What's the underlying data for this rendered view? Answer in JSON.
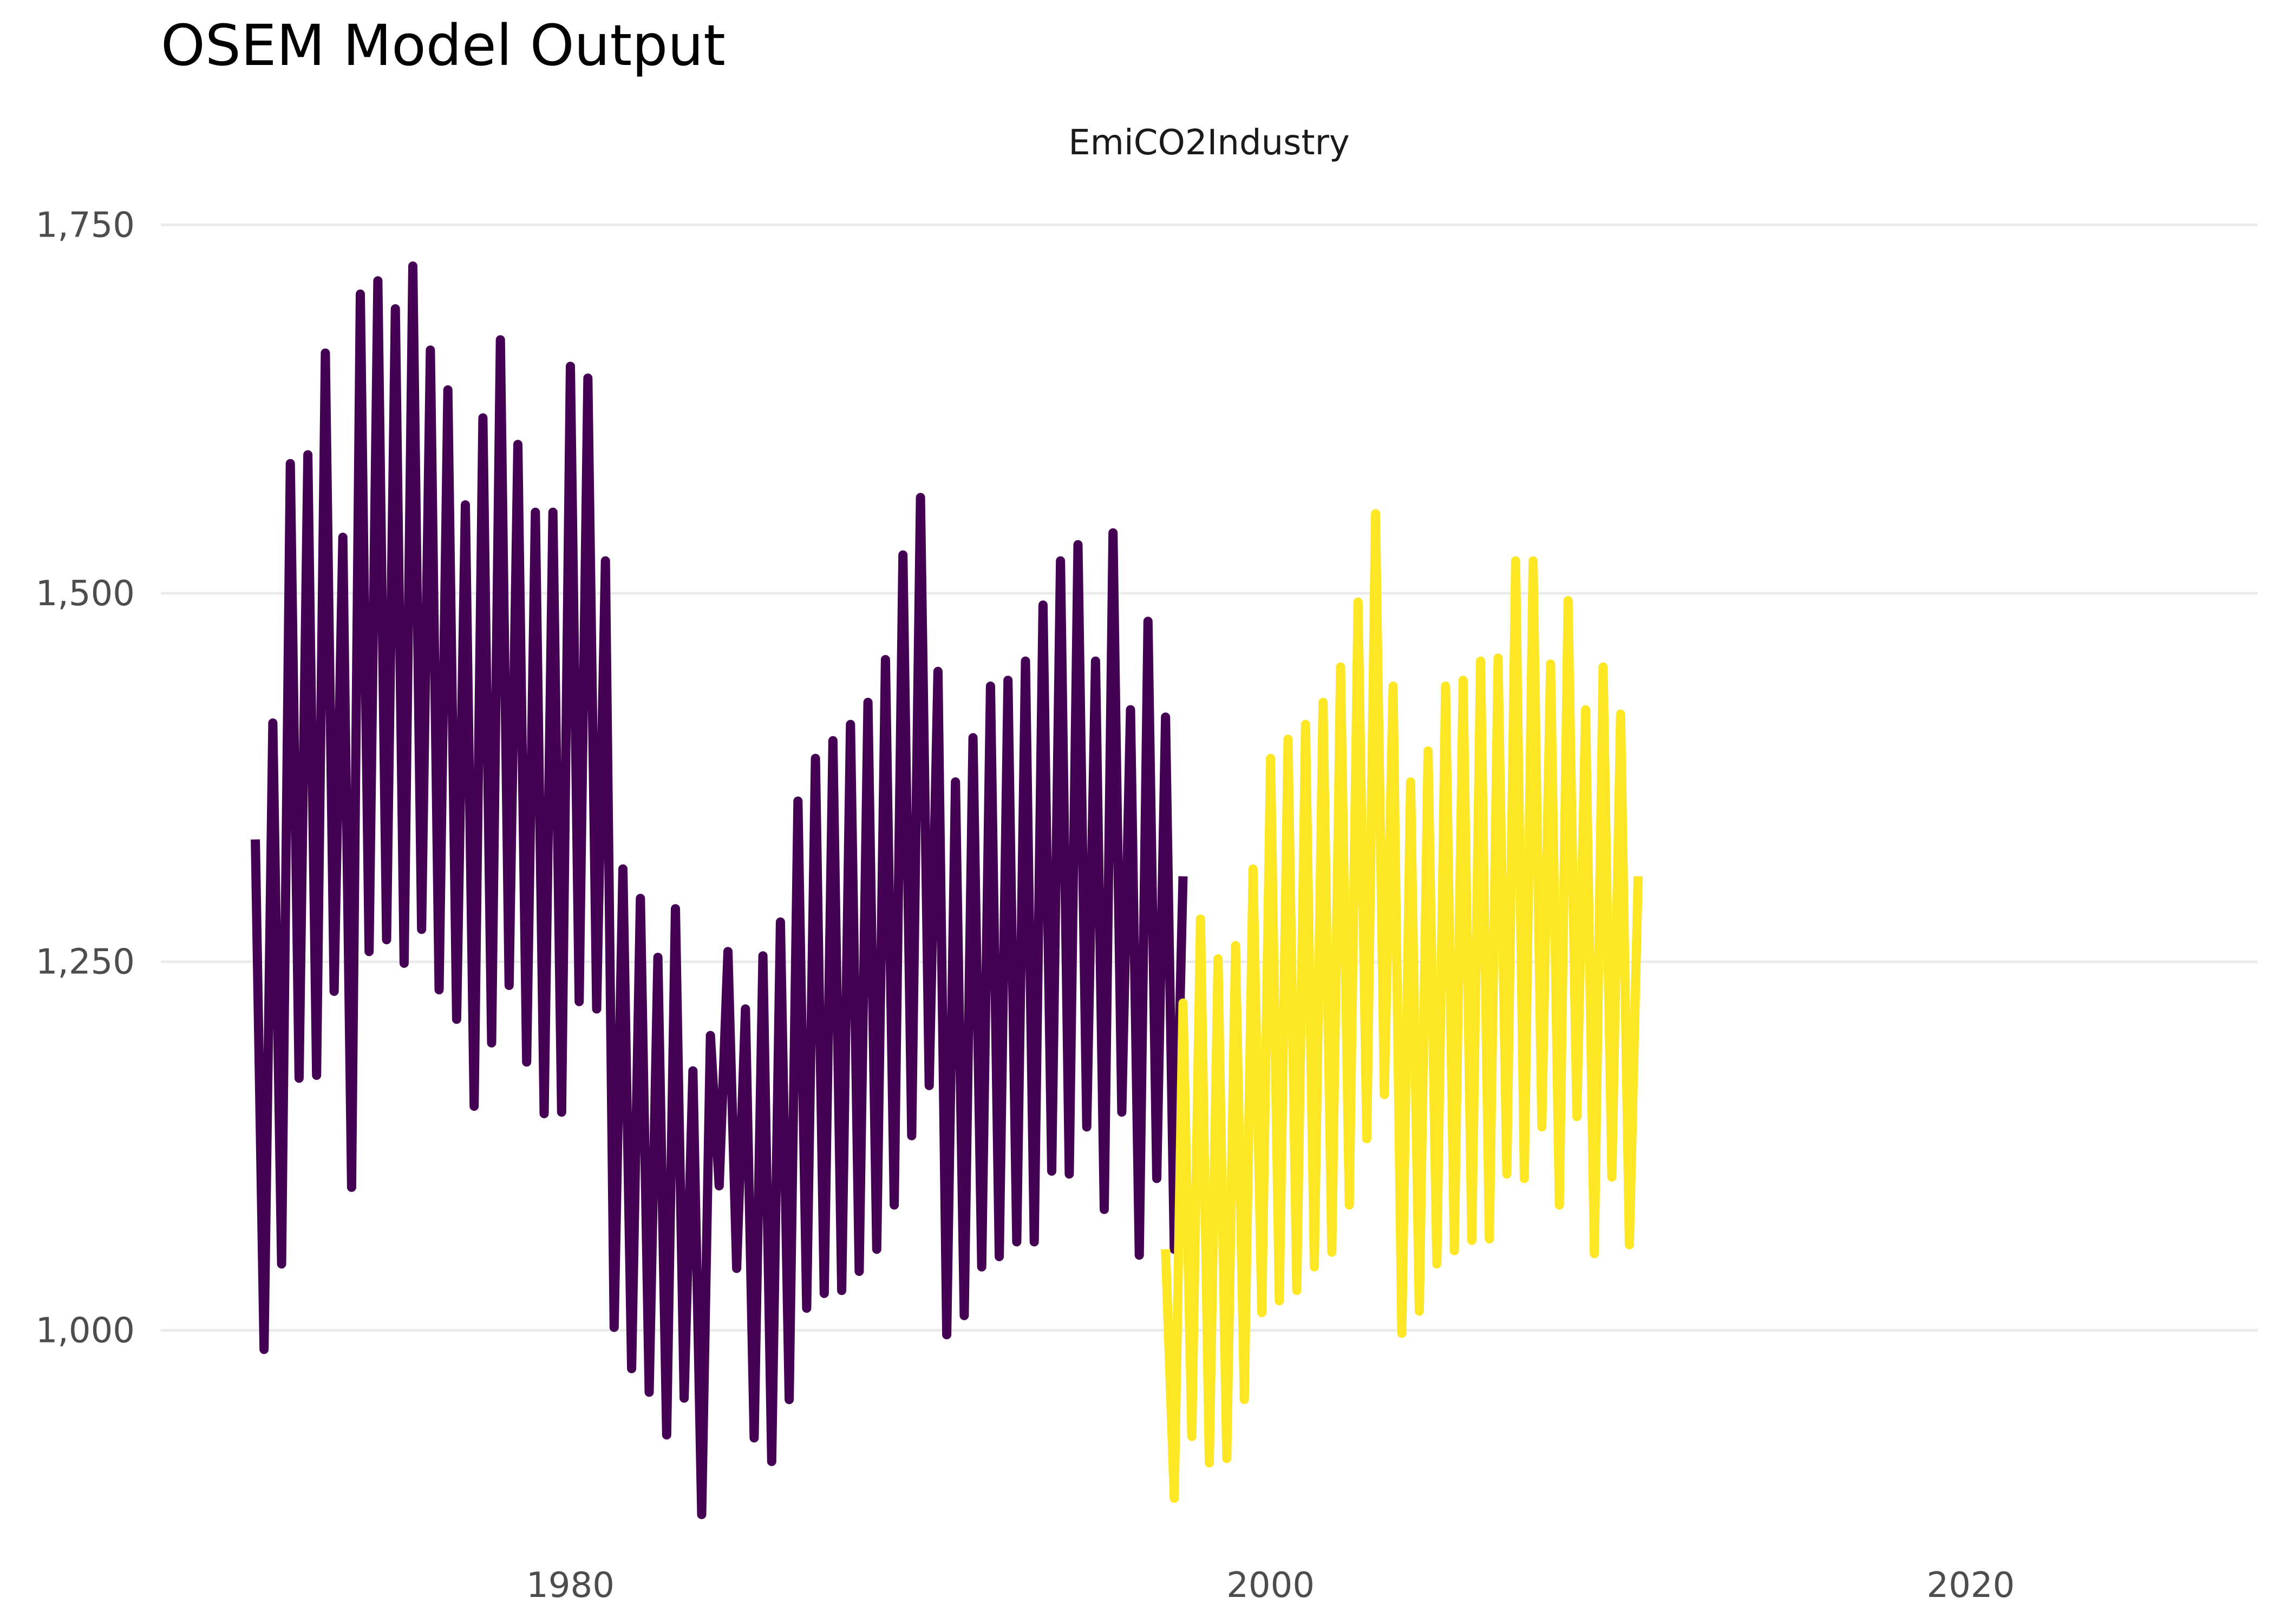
{
  "chart_data": {
    "type": "line",
    "title": "OSEM Model Output",
    "panel_title": "EmiCO2Industry",
    "xlabel": "",
    "ylabel": "",
    "xlim": [
      1968.3,
      2028.2
    ],
    "ylim": [
      865,
      1785
    ],
    "x_ticks": [
      1980,
      2000,
      2020
    ],
    "x_tick_labels": [
      "1980",
      "2000",
      "2020"
    ],
    "y_ticks": [
      1000,
      1250,
      1500,
      1750
    ],
    "y_tick_labels": [
      "1,000",
      "1,250",
      "1,500",
      "1,750"
    ],
    "grid": true,
    "legend": "none",
    "series": [
      {
        "color": "#440154",
        "x_start": 1971.0,
        "x_step": 0.25,
        "values": [
          1333,
          987,
          1412,
          1045,
          1588,
          1171,
          1594,
          1173,
          1663,
          1230,
          1538,
          1097,
          1703,
          1257,
          1712,
          1265,
          1693,
          1249,
          1722,
          1272,
          1665,
          1231,
          1638,
          1211,
          1560,
          1152,
          1619,
          1195,
          1672,
          1234,
          1601,
          1182,
          1555,
          1147,
          1555,
          1148,
          1654,
          1223,
          1646,
          1218,
          1522,
          1002,
          1313,
          974,
          1293,
          958,
          1253,
          929,
          1286,
          954,
          1176,
          875,
          1200,
          1098,
          1257,
          1042,
          1218,
          927,
          1254,
          911,
          1277,
          953,
          1359,
          1015,
          1388,
          1025,
          1400,
          1027,
          1411,
          1040,
          1426,
          1055,
          1455,
          1085,
          1526,
          1132,
          1565,
          1166,
          1447,
          997,
          1372,
          1010,
          1402,
          1043,
          1437,
          1050,
          1441,
          1060,
          1454,
          1060,
          1492,
          1108,
          1522,
          1106,
          1533,
          1138,
          1454,
          1082,
          1541,
          1148,
          1421,
          1051,
          1481,
          1103,
          1416,
          1055,
          1308
        ]
      },
      {
        "color": "#fde725",
        "x_start": 1997.0,
        "x_step": 0.25,
        "values": [
          1055,
          886,
          1222,
          928,
          1279,
          910,
          1252,
          913,
          1261,
          953,
          1313,
          1012,
          1388,
          1020,
          1401,
          1027,
          1411,
          1043,
          1426,
          1053,
          1450,
          1085,
          1494,
          1130,
          1554,
          1160,
          1437,
          998,
          1372,
          1013,
          1393,
          1045,
          1437,
          1054,
          1441,
          1061,
          1454,
          1062,
          1456,
          1106,
          1522,
          1103,
          1522,
          1138,
          1452,
          1085,
          1495,
          1145,
          1421,
          1052,
          1450,
          1104,
          1418,
          1058,
          1308
        ]
      }
    ]
  }
}
